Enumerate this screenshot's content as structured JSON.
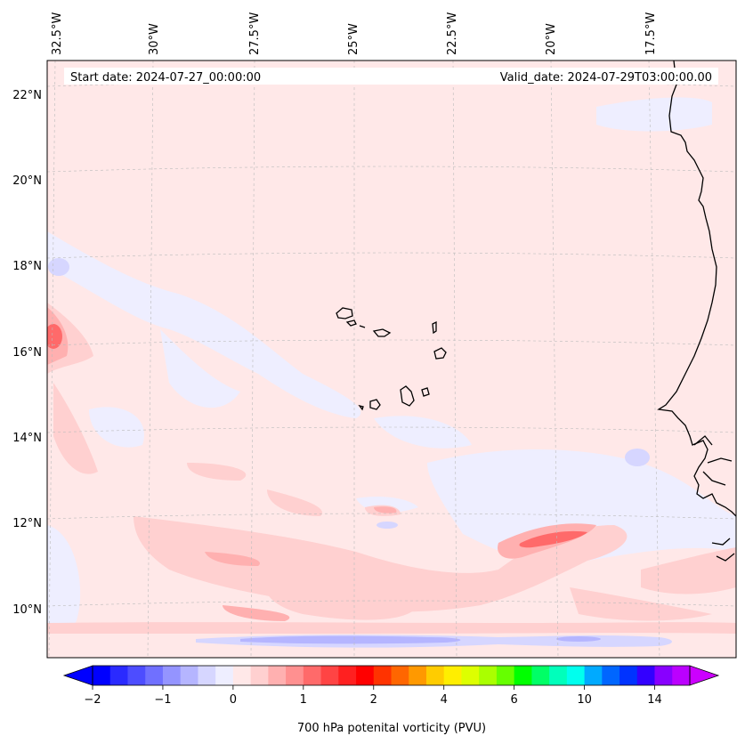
{
  "header": {
    "start_date": "Start date: 2024-07-27_00:00:00",
    "valid_date": "Valid_date: 2024-07-29T03:00:00.00"
  },
  "map": {
    "lon_labels": [
      "32.5°W",
      "30°W",
      "27.5°W",
      "25°W",
      "22.5°W",
      "20°W",
      "17.5°W"
    ],
    "lat_labels": [
      "22°N",
      "20°N",
      "18°N",
      "16°N",
      "14°N",
      "12°N",
      "10°N"
    ],
    "background_color": "#ffe8e8",
    "coastline_color": "#000000"
  },
  "colorbar": {
    "label": "700 hPa potenital vorticity (PVU)",
    "tick_labels": [
      "−2",
      "−1",
      "0",
      "1",
      "2",
      "4",
      "6",
      "10",
      "14"
    ],
    "colors": [
      "#0000ff",
      "#2a2aff",
      "#4d4dff",
      "#7070ff",
      "#9494ff",
      "#b5b5ff",
      "#d6d6ff",
      "#eeeeff",
      "#ffe8e8",
      "#ffd0d0",
      "#ffb0b0",
      "#ff9090",
      "#ff6a6a",
      "#ff4444",
      "#ff2020",
      "#ff0000",
      "#ff3300",
      "#ff6600",
      "#ff9900",
      "#ffcc00",
      "#ffee00",
      "#ddff00",
      "#aaff00",
      "#66ff00",
      "#00ff00",
      "#00ff66",
      "#00ffbb",
      "#00ffee",
      "#00aaff",
      "#0066ff",
      "#0033ff",
      "#3300ff",
      "#8800ff",
      "#bb00ff"
    ]
  }
}
